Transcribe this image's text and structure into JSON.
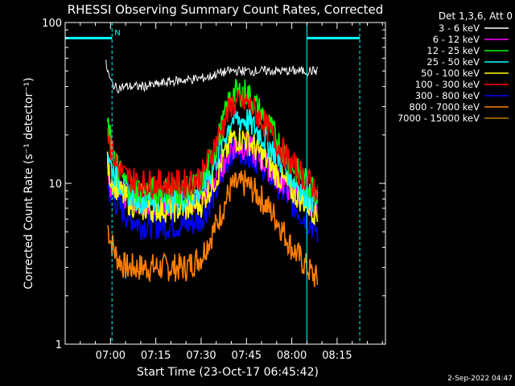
{
  "chart_data": {
    "type": "line",
    "title": "RHESSI Observing Summary Count Rates, Corrected",
    "xlabel": "Start Time (23-Oct-17 06:45:42)",
    "ylabel": "Corrected Count Rate (s⁻¹ detector⁻¹)",
    "yscale": "log",
    "ylim": [
      1,
      100
    ],
    "y_tick_labels": [
      "1",
      "10",
      "100"
    ],
    "xlim_minutes_after_0645": [
      0,
      106
    ],
    "x_tick_labels": [
      "07:00",
      "07:15",
      "07:30",
      "07:45",
      "08:00",
      "08:15"
    ],
    "x_tick_minutes": [
      15,
      30,
      45,
      60,
      75,
      90
    ],
    "timestamp": "2-Sep-2022 04:47",
    "legend_header": "Det 1,3,6, Att 0",
    "legend_position": "right",
    "night_marker_label": "N",
    "series": [
      {
        "name": "3 - 6 keV",
        "color": "#ffffff",
        "x": [
          13.5,
          15,
          17,
          20,
          25,
          30,
          35,
          40,
          45,
          48,
          50,
          55,
          60,
          65,
          70,
          75,
          80,
          83.5
        ],
        "values": [
          55,
          43,
          39,
          40,
          40,
          41,
          43,
          44,
          45,
          46,
          48,
          50,
          50,
          50,
          50,
          50,
          50,
          50
        ]
      },
      {
        "name": "6 - 12 keV",
        "color": "#ff00ff",
        "x": [
          14,
          15,
          17,
          20,
          25,
          30,
          35,
          40,
          45,
          50,
          55,
          60,
          65,
          70,
          75,
          80,
          83.5
        ],
        "values": [
          12,
          10,
          9,
          8.5,
          7.5,
          7.5,
          7.5,
          7.5,
          8,
          11,
          17,
          17,
          14,
          11,
          9,
          8,
          7
        ]
      },
      {
        "name": "12 - 25 keV",
        "color": "#00ff00",
        "x": [
          14,
          15,
          17,
          20,
          25,
          30,
          35,
          40,
          45,
          50,
          55,
          60,
          65,
          70,
          75,
          80,
          83.5
        ],
        "values": [
          24,
          18,
          13,
          10,
          9,
          9,
          9,
          9,
          10,
          17,
          36,
          37,
          27,
          19,
          13,
          10,
          9
        ]
      },
      {
        "name": "25 - 50 keV",
        "color": "#00ffff",
        "x": [
          14,
          15,
          17,
          20,
          25,
          30,
          35,
          40,
          45,
          50,
          55,
          60,
          65,
          70,
          75,
          80,
          83.5
        ],
        "values": [
          16,
          13,
          11,
          9,
          8,
          8,
          8,
          8,
          9,
          14,
          25,
          25,
          20,
          15,
          11,
          8.5,
          7.5
        ]
      },
      {
        "name": "50 - 100 keV",
        "color": "#ffff00",
        "x": [
          14,
          15,
          17,
          20,
          25,
          30,
          35,
          40,
          45,
          50,
          55,
          60,
          65,
          70,
          75,
          80,
          83.5
        ],
        "values": [
          13,
          11,
          9.5,
          8,
          7,
          7,
          7,
          7,
          7.5,
          11,
          19,
          19,
          15,
          11.5,
          9,
          7.5,
          6.5
        ]
      },
      {
        "name": "100 - 300 keV",
        "color": "#ff0000",
        "x": [
          14,
          15,
          17,
          20,
          25,
          30,
          35,
          40,
          45,
          50,
          55,
          60,
          65,
          70,
          75,
          80,
          83.5
        ],
        "values": [
          22,
          17,
          13,
          11,
          10,
          10,
          10,
          10,
          11,
          18,
          31,
          32,
          25,
          18,
          13,
          10.5,
          9
        ]
      },
      {
        "name": "300 - 800 keV",
        "color": "#0000ff",
        "x": [
          14,
          15,
          17,
          20,
          25,
          30,
          35,
          40,
          45,
          50,
          55,
          60,
          65,
          70,
          75,
          80,
          83.5
        ],
        "values": [
          10,
          8.5,
          7.5,
          6.5,
          5.5,
          5.5,
          5.5,
          5.5,
          6,
          9,
          16,
          16,
          13,
          10,
          7.5,
          6,
          5
        ]
      },
      {
        "name": "800 - 7000 keV",
        "color": "#ff8000",
        "x": [
          14,
          15,
          17,
          20,
          25,
          30,
          35,
          40,
          45,
          50,
          55,
          60,
          65,
          70,
          75,
          80,
          83.5
        ],
        "values": [
          5.5,
          4.5,
          3.5,
          3,
          3,
          3,
          3,
          3,
          3.5,
          5.5,
          9.5,
          10,
          8,
          6,
          4,
          3,
          2.5
        ]
      },
      {
        "name": "7000 - 15000 keV",
        "color": "#c08000",
        "x": [],
        "values": []
      }
    ],
    "attenuator_bars": [
      {
        "x_start": 0,
        "x_end": 15.5,
        "level": 80
      },
      {
        "x_start": 80,
        "x_end": 97.5,
        "level": 80
      }
    ],
    "saa_night_boundaries_minutes": [
      0,
      15.5,
      80,
      97.5
    ]
  }
}
